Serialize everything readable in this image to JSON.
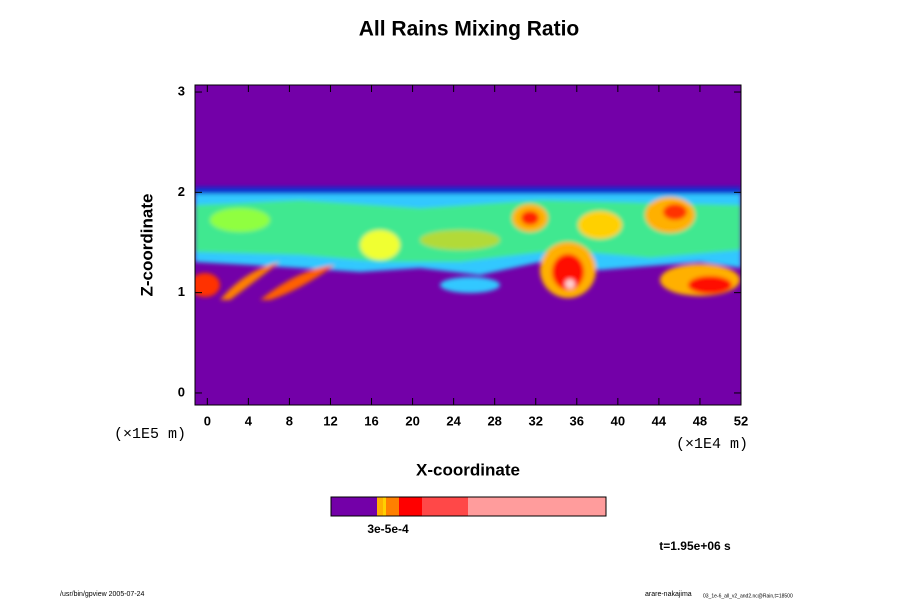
{
  "chart_data": {
    "type": "heatmap",
    "title": "All Rains Mixing Ratio",
    "x_label": "X-coordinate",
    "y_label": "Z-coordinate",
    "x_unit": "(×1E4 m)",
    "y_unit": "(×1E5 m)",
    "xlim": [
      -1.2,
      52
    ],
    "ylim": [
      -0.12,
      3.07
    ],
    "xticks": [
      0,
      4,
      8,
      12,
      16,
      20,
      24,
      28,
      32,
      36,
      40,
      44,
      48,
      52
    ],
    "yticks": [
      0,
      1,
      2,
      3
    ],
    "colorbar": {
      "colors": [
        "#7300a8",
        "#ffb000",
        "#ffd000",
        "#ff8000",
        "#ff0000",
        "#ff4848",
        "#ff9c9c"
      ],
      "label": "3e-5e-4"
    },
    "time_label": "t=1.95e+06 s",
    "footer_left": "/usr/bin/gpview 2005-07-24",
    "footer_right": "arare-nakajima",
    "footer_right_small": "03_1e-6_all_v2_and2.nc@Rain,t=18500"
  }
}
